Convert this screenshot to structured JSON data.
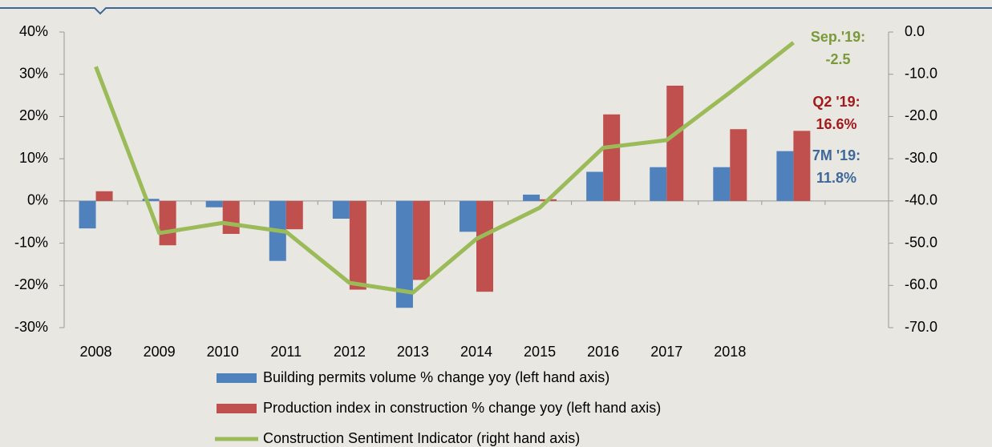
{
  "chart_data": {
    "type": "bar_line",
    "categories": [
      "2008",
      "2009",
      "2010",
      "2011",
      "2012",
      "2013",
      "2014",
      "2015",
      "2016",
      "2017",
      "2018",
      null,
      null
    ],
    "series": [
      {
        "name": "Building permits volume % change yoy (left hand axis)",
        "type": "bar",
        "color": "#4f81bd",
        "values": [
          -6.5,
          0.5,
          -1.5,
          -14.2,
          -4.2,
          -25.3,
          -7.3,
          1.5,
          6.9,
          8.0,
          8.0,
          11.8,
          null
        ]
      },
      {
        "name": "Production index in construction % change yoy (left hand axis)",
        "type": "bar",
        "color": "#c0504d",
        "values": [
          2.3,
          -10.5,
          -7.8,
          -6.7,
          -21.0,
          -18.7,
          -21.5,
          0.4,
          20.5,
          27.3,
          17.0,
          16.6,
          null
        ]
      },
      {
        "name": "Construction Sentiment Indicator (right hand axis)",
        "type": "line",
        "axis": "y2",
        "color": "#9bbb59",
        "values": [
          -8.2,
          -47.6,
          -45.2,
          -47.3,
          -59.4,
          -61.7,
          -49.0,
          -41.6,
          -27.4,
          -25.6,
          -14.3,
          -2.5,
          null
        ]
      }
    ],
    "ylim": [
      -30,
      40
    ],
    "yticks": [
      {
        "value": -30,
        "label": "-30%"
      },
      {
        "value": -20,
        "label": "-20%"
      },
      {
        "value": -10,
        "label": "-10%"
      },
      {
        "value": 0,
        "label": "0%"
      },
      {
        "value": 10,
        "label": "10%"
      },
      {
        "value": 20,
        "label": "20%"
      },
      {
        "value": 30,
        "label": "30%"
      },
      {
        "value": 40,
        "label": "40%"
      }
    ],
    "y2lim": [
      -70,
      0
    ],
    "y2ticks": [
      {
        "value": -70,
        "label": "-70.0"
      },
      {
        "value": -60,
        "label": "-60.0"
      },
      {
        "value": -50,
        "label": "-50.0"
      },
      {
        "value": -40,
        "label": "-40.0"
      },
      {
        "value": -30,
        "label": "-30.0"
      },
      {
        "value": -20,
        "label": "-20.0"
      },
      {
        "value": -10,
        "label": "-10.0"
      },
      {
        "value": 0,
        "label": "0.0"
      }
    ],
    "annotations": [
      {
        "label": "Sep.'19:",
        "value": "-2.5",
        "color": "#7a9a3a"
      },
      {
        "label": "Q2 '19:",
        "value": "16.6%",
        "color": "#a3191c"
      },
      {
        "label": "7M '19:",
        "value": "11.8%",
        "color": "#3e679a"
      }
    ]
  }
}
